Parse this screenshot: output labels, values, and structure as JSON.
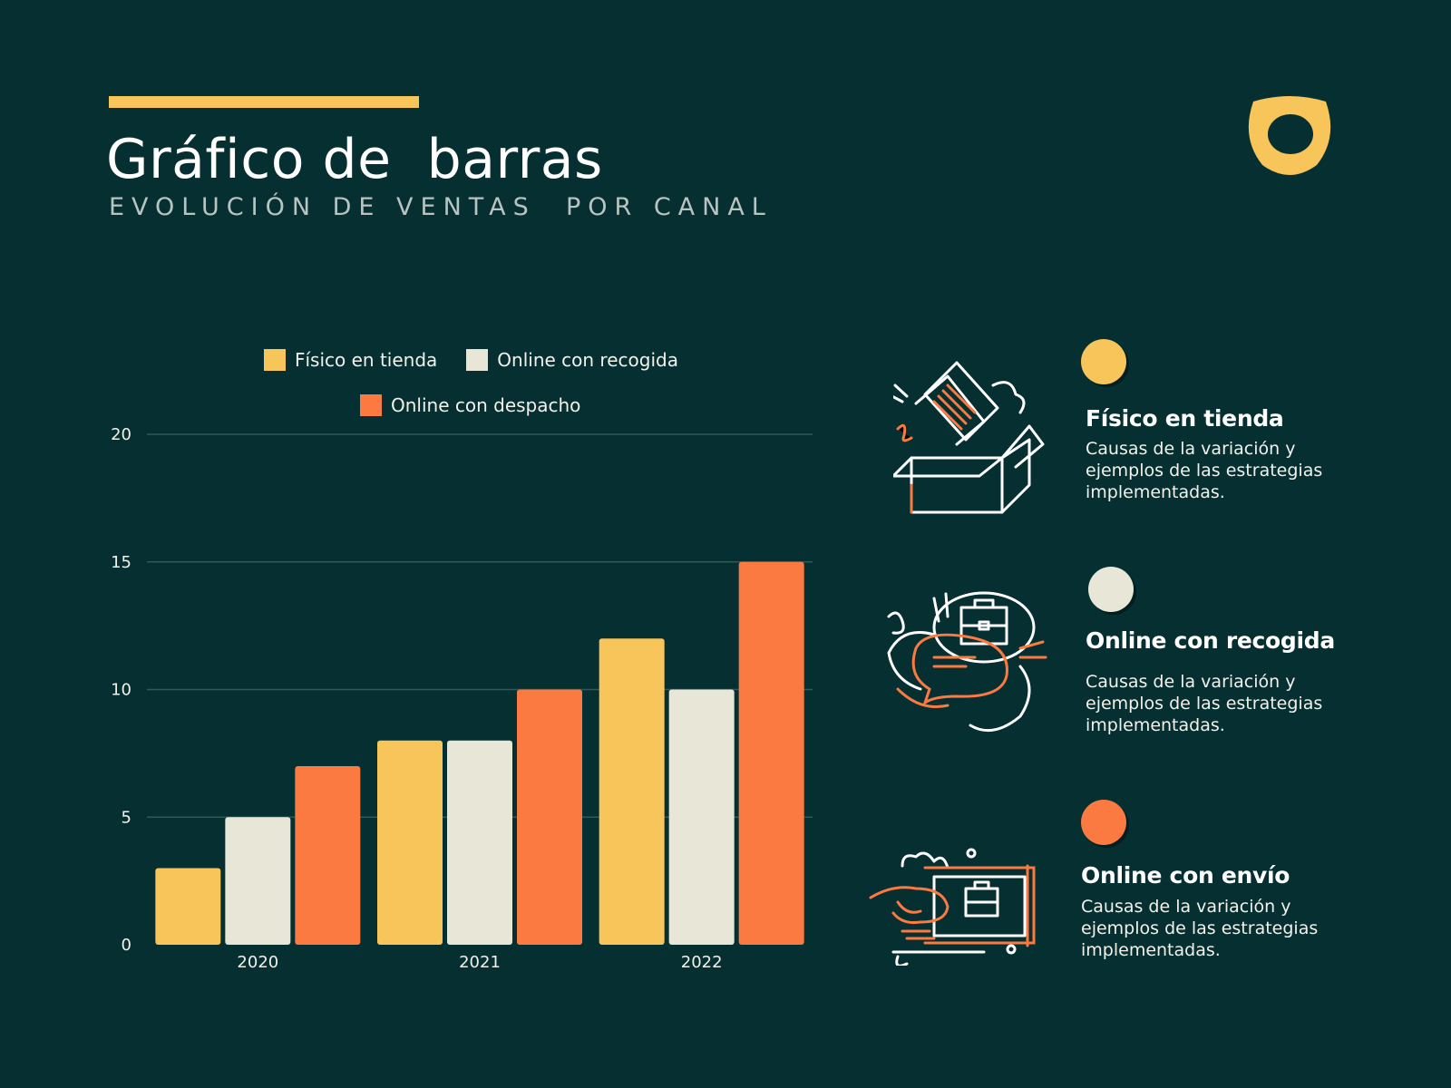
{
  "header": {
    "title": "Gráfico de  barras",
    "subtitle": "EVOLUCIÓN DE VENTAS  POR CANAL"
  },
  "colors": {
    "background": "#052f31",
    "accent": "#f7c55a",
    "fisico": "#f7c55a",
    "recogida": "#e8e6d6",
    "despacho": "#fb7a41"
  },
  "chart_data": {
    "type": "bar",
    "categories": [
      "2020",
      "2021",
      "2022"
    ],
    "series": [
      {
        "name": "Físico en tienda",
        "values": [
          3,
          8,
          12
        ],
        "color": "#f7c55a"
      },
      {
        "name": "Online con recogida",
        "values": [
          5,
          8,
          10
        ],
        "color": "#e8e6d6"
      },
      {
        "name": "Online con despacho",
        "values": [
          7,
          10,
          15
        ],
        "color": "#fb7a41"
      }
    ],
    "ylim": [
      0,
      20
    ],
    "yticks": [
      0,
      5,
      10,
      15,
      20
    ],
    "grid": true,
    "legend_position": "top"
  },
  "side_panel": [
    {
      "heading": "Físico en tienda",
      "description": "Causas de la variación y ejemplos de las estrategias implementadas.",
      "color": "#f7c55a",
      "icon": "open-box-icon"
    },
    {
      "heading": "Online con recogida",
      "description": "Causas de la variación y ejemplos de las estrategias implementadas.",
      "color": "#e8e6d6",
      "icon": "chat-handshake-icon"
    },
    {
      "heading": "Online con envío",
      "description": "Causas de la variación y ejemplos de las estrategias implementadas.",
      "color": "#fb7a41",
      "icon": "laptop-hand-icon"
    }
  ]
}
